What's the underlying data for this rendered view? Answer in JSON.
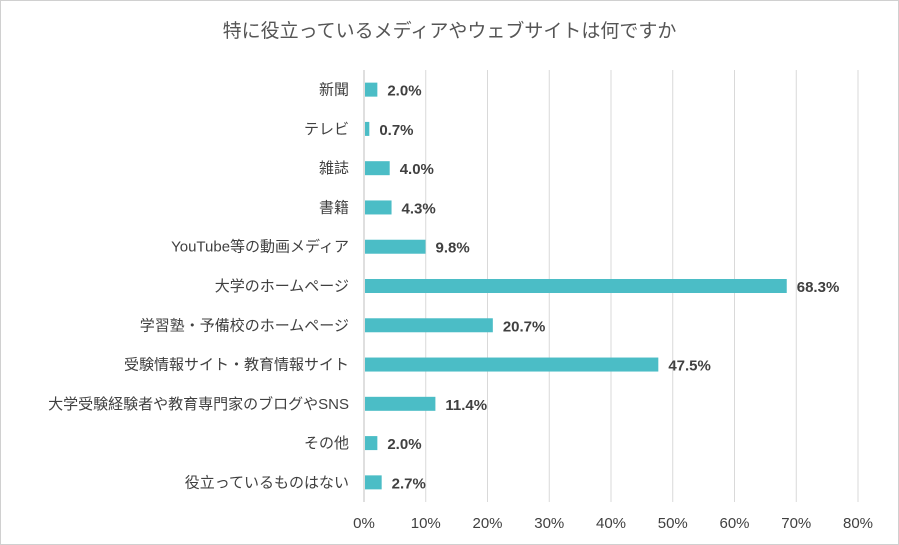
{
  "chart_data": {
    "type": "bar",
    "orientation": "horizontal",
    "title": "特に役立っているメディアやウェブサイトは何ですか",
    "categories": [
      "新聞",
      "テレビ",
      "雑誌",
      "書籍",
      "YouTube等の動画メディア",
      "大学のホームページ",
      "学習塾・予備校のホームページ",
      "受験情報サイト・教育情報サイト",
      "大学受験経験者や教育専門家のブログやSNS",
      "その他",
      "役立っているものはない"
    ],
    "values": [
      2.0,
      0.7,
      4.0,
      4.3,
      9.8,
      68.3,
      20.7,
      47.5,
      11.4,
      2.0,
      2.7
    ],
    "value_labels": [
      "2.0%",
      "0.7%",
      "4.0%",
      "4.3%",
      "9.8%",
      "68.3%",
      "20.7%",
      "47.5%",
      "11.4%",
      "2.0%",
      "2.7%"
    ],
    "x_ticks": [
      0,
      10,
      20,
      30,
      40,
      50,
      60,
      70,
      80
    ],
    "x_tick_labels": [
      "0%",
      "10%",
      "20%",
      "30%",
      "40%",
      "50%",
      "60%",
      "70%",
      "80%"
    ],
    "xlim": [
      0,
      80
    ],
    "xlabel": "",
    "ylabel": "",
    "grid": true,
    "legend": "none",
    "bar_color": "#4bbdc6",
    "grid_color": "#d9d9d9"
  }
}
